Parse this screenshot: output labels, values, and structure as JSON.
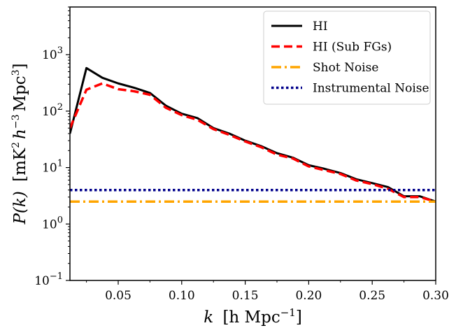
{
  "chart_data": {
    "type": "line",
    "xlabel_parts": {
      "var": "k",
      "unit": "h Mpc",
      "exp": "−1"
    },
    "ylabel_parts": {
      "var": "P(k)",
      "unit_a": "mK",
      "exp_a": "2",
      "unit_b": "h",
      "exp_b": "−3",
      "unit_c": "Mpc",
      "exp_c": "3"
    },
    "xlim": [
      0.012,
      0.3
    ],
    "ylim": [
      0.1,
      7000
    ],
    "yscale": "log",
    "x_ticks": [
      0.05,
      0.1,
      0.15,
      0.2,
      0.25,
      0.3
    ],
    "x_tick_labels": [
      "0.05",
      "0.10",
      "0.15",
      "0.20",
      "0.25",
      "0.30"
    ],
    "y_ticks": [
      0.1,
      1,
      10,
      100,
      1000
    ],
    "y_tick_labels": [
      {
        "base": "10",
        "exp": "−1"
      },
      {
        "base": "10",
        "exp": "0"
      },
      {
        "base": "10",
        "exp": "1"
      },
      {
        "base": "10",
        "exp": "2"
      },
      {
        "base": "10",
        "exp": "3"
      }
    ],
    "grid": false,
    "legend_position": "top-right",
    "series": [
      {
        "name": "HI",
        "color": "#000000",
        "style": "solid",
        "x": [
          0.012,
          0.025,
          0.0375,
          0.05,
          0.0625,
          0.075,
          0.0875,
          0.1,
          0.1125,
          0.125,
          0.1375,
          0.15,
          0.1625,
          0.175,
          0.1875,
          0.2,
          0.2125,
          0.225,
          0.2375,
          0.25,
          0.2625,
          0.275,
          0.2875,
          0.3
        ],
        "y": [
          40,
          580,
          390,
          310,
          260,
          210,
          125,
          90,
          75,
          50,
          40,
          30,
          24,
          18,
          15,
          11,
          9.5,
          8,
          6.2,
          5.3,
          4.5,
          3.1,
          3.1,
          2.5
        ]
      },
      {
        "name": "HI (Sub FGs)",
        "color": "#ff0000",
        "style": "dashed",
        "x": [
          0.012,
          0.025,
          0.0375,
          0.05,
          0.0625,
          0.075,
          0.0875,
          0.1,
          0.1125,
          0.125,
          0.1375,
          0.15,
          0.1625,
          0.175,
          0.1875,
          0.2,
          0.2125,
          0.225,
          0.2375,
          0.25,
          0.2625,
          0.275,
          0.2875,
          0.3
        ],
        "y": [
          50,
          240,
          310,
          245,
          225,
          195,
          115,
          85,
          70,
          48,
          38,
          29,
          23,
          17,
          14.5,
          10.5,
          9,
          7.7,
          5.9,
          5.1,
          4.2,
          3.0,
          3.0,
          2.5
        ]
      },
      {
        "name": "Shot Noise",
        "color": "#ffa500",
        "style": "dashdot",
        "x": [
          0.012,
          0.3
        ],
        "y": [
          2.5,
          2.5
        ]
      },
      {
        "name": "Instrumental Noise",
        "color": "#00008b",
        "style": "dotted",
        "x": [
          0.012,
          0.3
        ],
        "y": [
          4.0,
          4.0
        ]
      }
    ]
  }
}
